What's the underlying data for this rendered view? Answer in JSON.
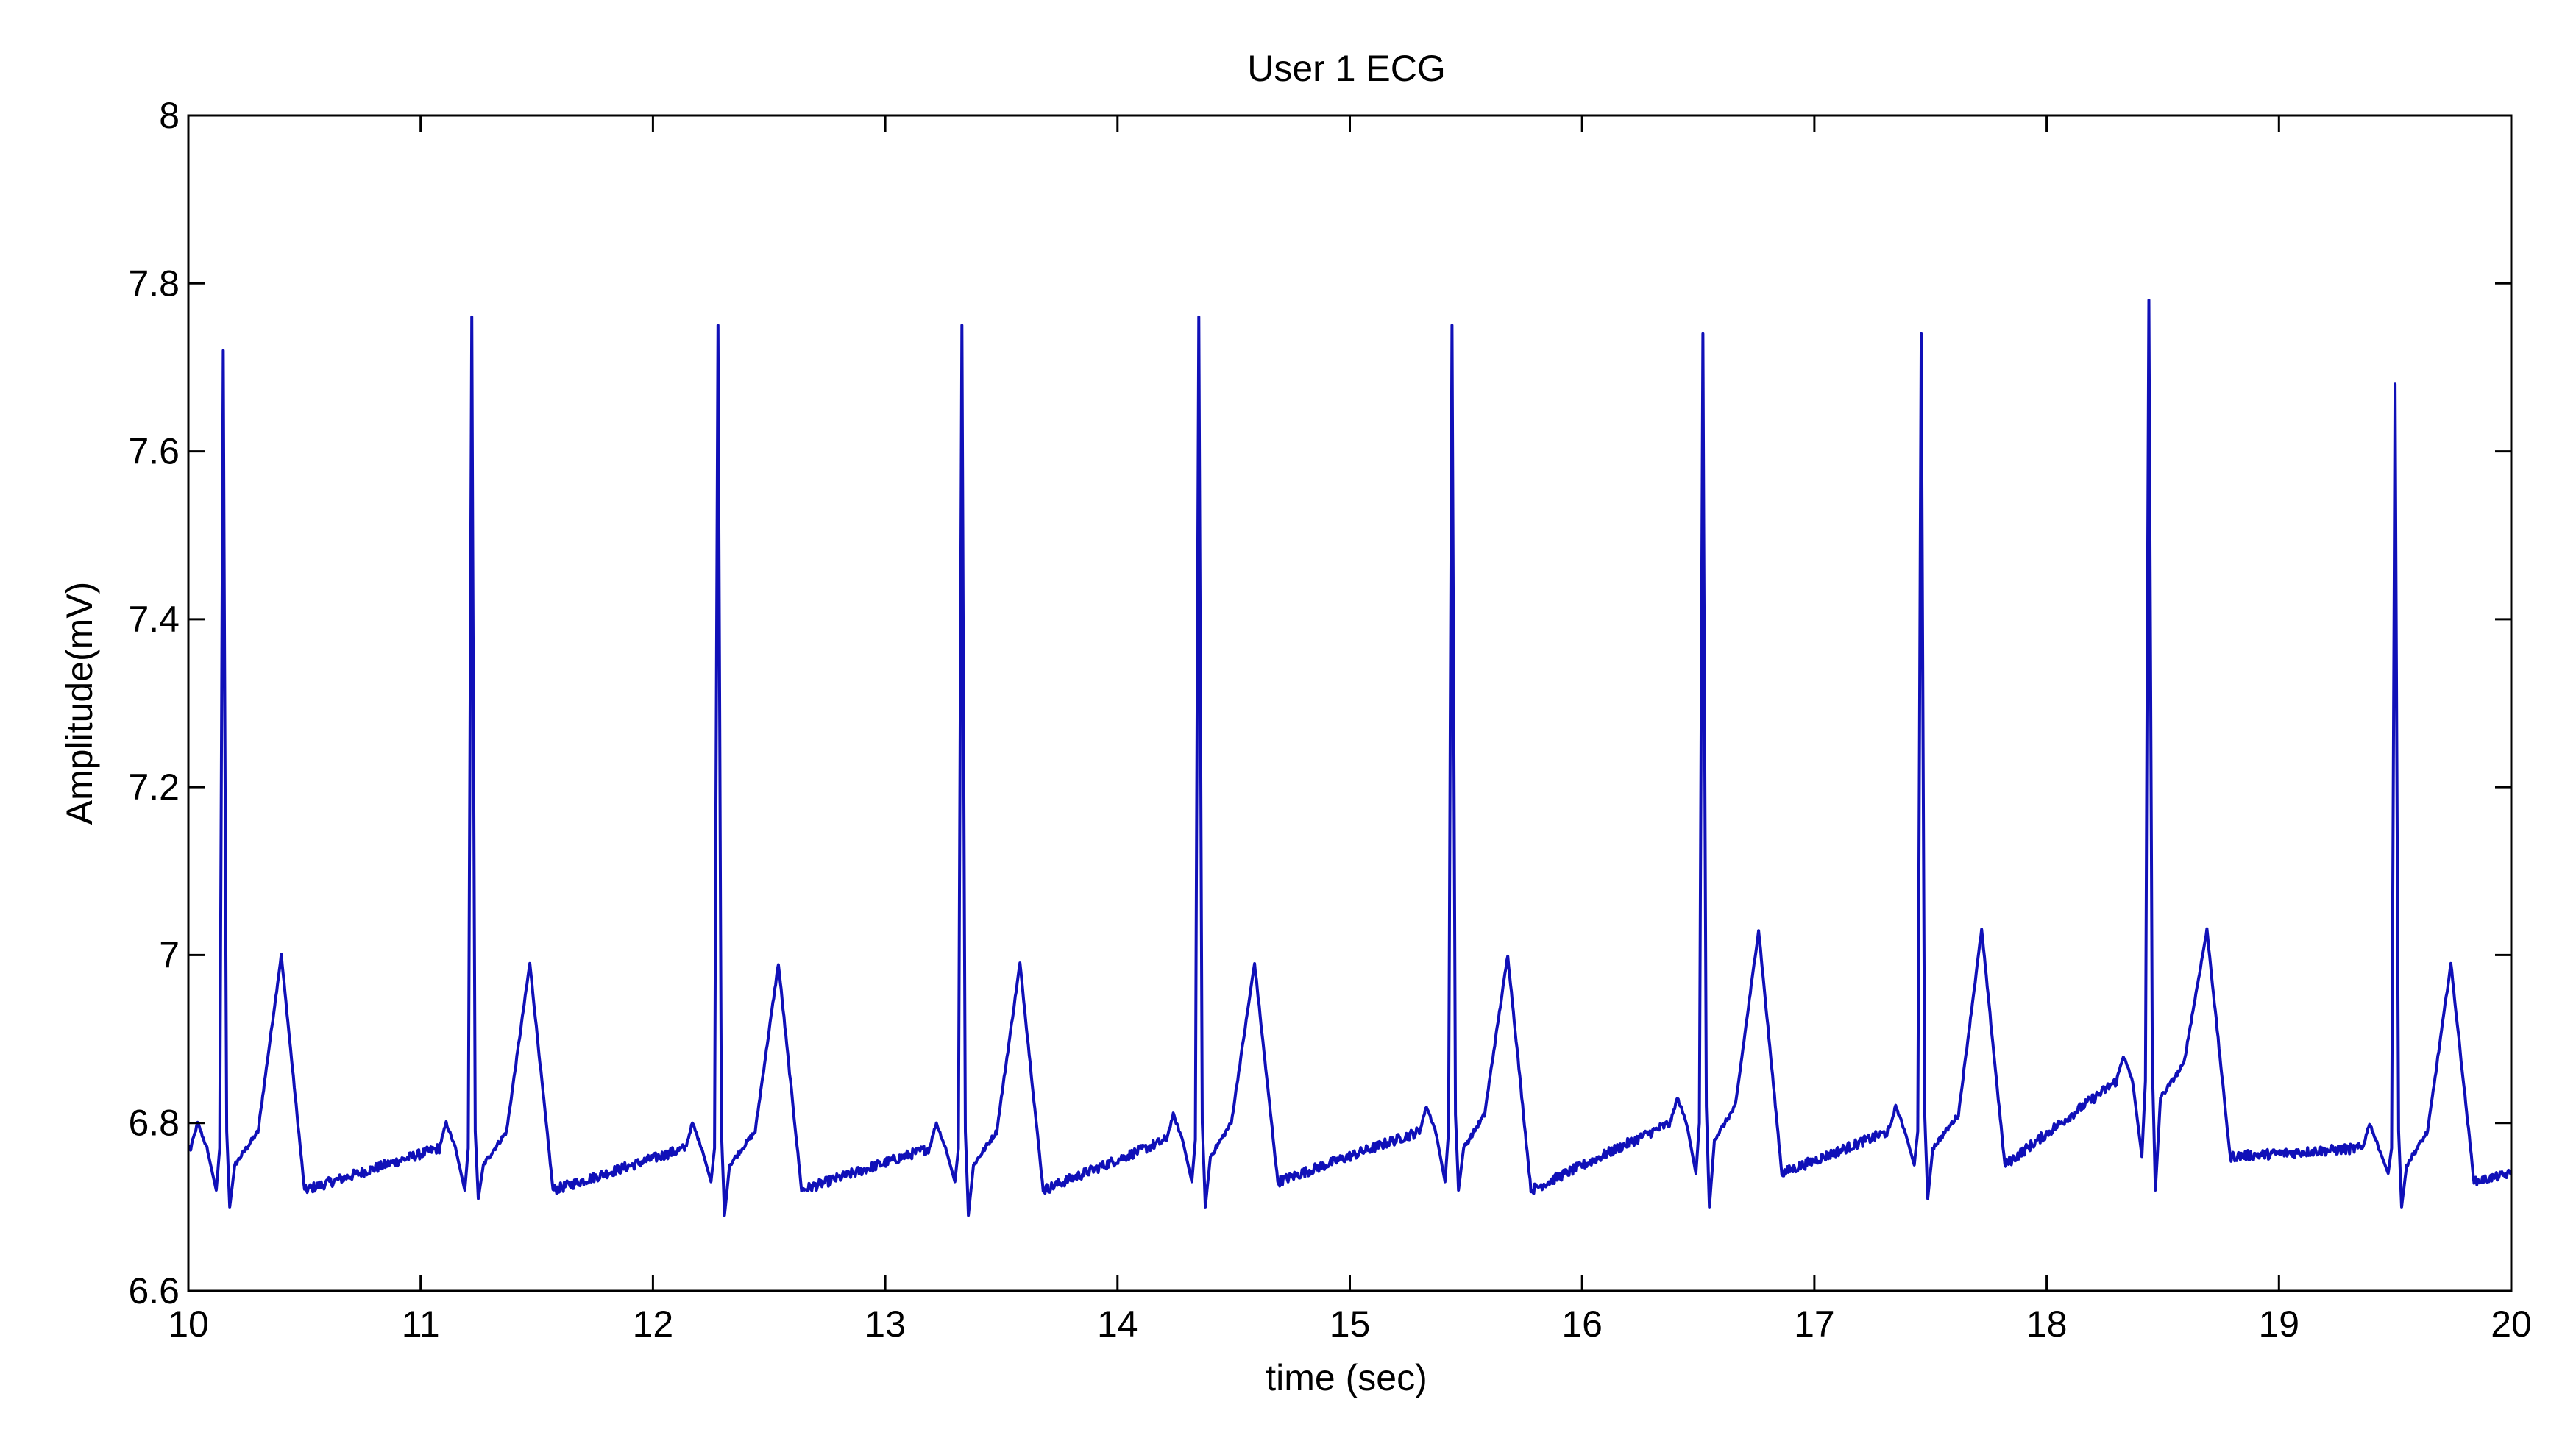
{
  "chart_data": {
    "type": "line",
    "title": "User 1 ECG",
    "xlabel": "time (sec)",
    "ylabel": "Amplitude(mV)",
    "xlim": [
      10,
      20
    ],
    "ylim": [
      6.6,
      8
    ],
    "xticks": [
      10,
      11,
      12,
      13,
      14,
      15,
      16,
      17,
      18,
      19,
      20
    ],
    "xtick_labels": [
      "10",
      "11",
      "12",
      "13",
      "14",
      "15",
      "16",
      "17",
      "18",
      "19",
      "20"
    ],
    "yticks": [
      6.6,
      6.8,
      7,
      7.2,
      7.4,
      7.6,
      7.8,
      8
    ],
    "ytick_labels": [
      "6.6",
      "6.8",
      "7",
      "7.2",
      "7.4",
      "7.6",
      "7.8",
      "8"
    ],
    "grid": false,
    "series_color": "#1010b8",
    "series": [
      {
        "beats": [
          {
            "r_time": 10.15,
            "r_peak": 7.72,
            "q_min": 6.72,
            "s_min": 6.7,
            "baseline_before": 6.77,
            "t_time": 10.4,
            "t_peak": 7.0,
            "baseline_after": 6.72
          },
          {
            "r_time": 11.22,
            "r_peak": 7.76,
            "q_min": 6.72,
            "s_min": 6.71,
            "baseline_before": 6.77,
            "t_time": 11.47,
            "t_peak": 6.99,
            "baseline_after": 6.72
          },
          {
            "r_time": 12.28,
            "r_peak": 7.75,
            "q_min": 6.73,
            "s_min": 6.69,
            "baseline_before": 6.77,
            "t_time": 12.54,
            "t_peak": 6.99,
            "baseline_after": 6.72
          },
          {
            "r_time": 13.33,
            "r_peak": 7.75,
            "q_min": 6.73,
            "s_min": 6.69,
            "baseline_before": 6.77,
            "t_time": 13.58,
            "t_peak": 6.99,
            "baseline_after": 6.72
          },
          {
            "r_time": 14.35,
            "r_peak": 7.76,
            "q_min": 6.73,
            "s_min": 6.7,
            "baseline_before": 6.78,
            "t_time": 14.59,
            "t_peak": 6.99,
            "baseline_after": 6.73
          },
          {
            "r_time": 15.44,
            "r_peak": 7.75,
            "q_min": 6.73,
            "s_min": 6.72,
            "baseline_before": 6.79,
            "t_time": 15.68,
            "t_peak": 7.0,
            "baseline_after": 6.72
          },
          {
            "r_time": 16.52,
            "r_peak": 7.74,
            "q_min": 6.74,
            "s_min": 6.7,
            "baseline_before": 6.8,
            "t_time": 16.76,
            "t_peak": 7.03,
            "baseline_after": 6.74
          },
          {
            "r_time": 17.46,
            "r_peak": 7.74,
            "q_min": 6.75,
            "s_min": 6.71,
            "baseline_before": 6.79,
            "t_time": 17.72,
            "t_peak": 7.03,
            "baseline_after": 6.75
          },
          {
            "r_time": 18.44,
            "r_peak": 7.78,
            "q_min": 6.76,
            "s_min": 6.72,
            "baseline_before": 6.85,
            "t_time": 18.69,
            "t_peak": 7.03,
            "baseline_after": 6.76
          },
          {
            "r_time": 19.5,
            "r_peak": 7.68,
            "q_min": 6.74,
            "s_min": 6.7,
            "baseline_before": 6.77,
            "t_time": 19.74,
            "t_peak": 6.99,
            "baseline_after": 6.73
          }
        ],
        "start_value": 6.77,
        "end_value": 6.74
      }
    ]
  }
}
